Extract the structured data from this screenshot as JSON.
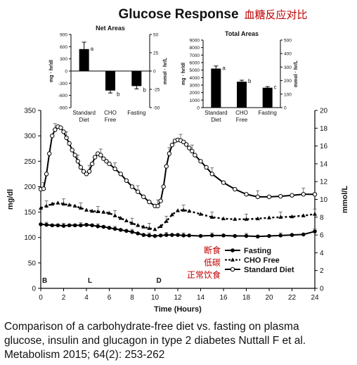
{
  "title": "Glucose Response",
  "title_cn": "血糖反应对比",
  "caption": [
    "Comparison of a carbohydrate-free diet vs. fasting on plasma",
    "glucose, insulin and glucagon in type 2 diabetes Nuttall F et al.",
    "Metabolism 2015; 64(2): 253-262"
  ],
  "chart_data": [
    {
      "type": "bar",
      "title": "Net Areas",
      "categories": [
        "Standard Diet",
        "CHO Free",
        "Fasting"
      ],
      "category_lines": [
        [
          "Standard",
          "Diet"
        ],
        [
          "CHO",
          "Free"
        ],
        [
          "Fasting"
        ]
      ],
      "values": [
        540,
        -480,
        -370
      ],
      "errors": [
        170,
        60,
        70
      ],
      "letters": [
        "a",
        "b",
        "b"
      ],
      "ylabel": "mg · hr/dl",
      "ylabel_right": "mmol · hr/L",
      "ylim": [
        -900,
        900
      ],
      "yticks": [
        "900",
        "600",
        "300",
        "0",
        "-300",
        "-600",
        "-900"
      ],
      "ylim_right": [
        -50,
        50
      ],
      "yticks_right": [
        "50",
        "25",
        "0",
        "-25",
        "-50"
      ],
      "color": "#000000"
    },
    {
      "type": "bar",
      "title": "Total Areas",
      "categories": [
        "Standard Diet",
        "CHO Free",
        "Fasting"
      ],
      "category_lines": [
        [
          "Standard",
          "Diet"
        ],
        [
          "CHO",
          "Free"
        ],
        [
          "Fasting"
        ]
      ],
      "values": [
        5200,
        3450,
        2650
      ],
      "errors": [
        350,
        200,
        150
      ],
      "letters": [
        "a",
        "b",
        "c"
      ],
      "ylabel": "mg · hr/dl",
      "ylabel_right": "mmol · hr/L",
      "ylim": [
        0,
        9000
      ],
      "yticks": [
        "0",
        "1000",
        "2000",
        "3000",
        "4000",
        "5000",
        "6000",
        "7000",
        "8000",
        "9000"
      ],
      "ylim_right": [
        0,
        500
      ],
      "yticks_right": [
        "0",
        "100",
        "200",
        "300",
        "400",
        "500"
      ],
      "color": "#000000"
    },
    {
      "type": "line",
      "xlabel": "Time (Hours)",
      "ylabel": "mg/dl",
      "ylabel_right": "mmol/L",
      "xlim": [
        0,
        24
      ],
      "ylim": [
        0,
        350
      ],
      "ylim_right": [
        0,
        20
      ],
      "xticks": [
        "0",
        "2",
        "4",
        "6",
        "8",
        "10",
        "12",
        "14",
        "16",
        "18",
        "20",
        "22",
        "24"
      ],
      "yticks": [
        "0",
        "50",
        "100",
        "150",
        "200",
        "250",
        "300",
        "350"
      ],
      "yticks_right": [
        "0",
        "2",
        "4",
        "6",
        "8",
        "10",
        "12",
        "14",
        "16",
        "18",
        "20"
      ],
      "meal_markers": [
        {
          "label": "B",
          "x": 0
        },
        {
          "label": "L",
          "x": 4
        },
        {
          "label": "D",
          "x": 10
        }
      ],
      "series": [
        {
          "name": "Fasting",
          "marker": "filled-circle",
          "dash": "solid",
          "x": [
            0,
            0.5,
            1,
            1.5,
            2,
            2.5,
            3,
            3.5,
            4,
            4.5,
            5,
            5.5,
            6,
            6.5,
            7,
            7.5,
            8,
            8.5,
            9,
            9.5,
            10,
            10.5,
            11,
            11.5,
            12,
            12.5,
            13,
            14,
            15,
            16,
            17,
            18,
            19,
            20,
            21,
            22,
            23,
            24
          ],
          "y": [
            126,
            125,
            124,
            124,
            123,
            124,
            124,
            124,
            125,
            124,
            122,
            121,
            119,
            117,
            115,
            113,
            111,
            108,
            105,
            104,
            103,
            104,
            105,
            105,
            105,
            104,
            104,
            103,
            104,
            104,
            103,
            103,
            102,
            103,
            104,
            105,
            106,
            112
          ]
        },
        {
          "name": "CHO Free",
          "marker": "filled-triangle",
          "dash": "dotted",
          "x": [
            0,
            0.5,
            1,
            1.5,
            2,
            2.5,
            3,
            3.5,
            4,
            4.5,
            5,
            5.5,
            6,
            6.5,
            7,
            7.5,
            8,
            8.5,
            9,
            9.5,
            10,
            10.5,
            11,
            11.5,
            12,
            12.5,
            13,
            14,
            15,
            16,
            17,
            18,
            19,
            20,
            21,
            22,
            23,
            24
          ],
          "y": [
            158,
            162,
            166,
            168,
            166,
            164,
            162,
            158,
            154,
            152,
            151,
            150,
            148,
            143,
            138,
            133,
            128,
            124,
            121,
            118,
            116,
            122,
            132,
            145,
            153,
            154,
            152,
            146,
            140,
            137,
            136,
            136,
            137,
            139,
            140,
            141,
            143,
            146
          ]
        },
        {
          "name": "Standard Diet",
          "marker": "open-circle",
          "dash": "solid",
          "x": [
            0,
            0.25,
            0.5,
            0.75,
            1,
            1.25,
            1.5,
            1.75,
            2,
            2.25,
            2.5,
            2.75,
            3,
            3.25,
            3.5,
            3.75,
            4,
            4.25,
            4.5,
            4.75,
            5,
            5.25,
            5.5,
            5.75,
            6,
            6.5,
            7,
            7.5,
            8,
            8.5,
            9,
            9.5,
            10,
            10.25,
            10.5,
            10.75,
            11,
            11.25,
            11.5,
            11.75,
            12,
            12.25,
            12.5,
            12.75,
            13,
            13.25,
            13.5,
            14,
            14.5,
            15,
            16,
            17,
            18,
            19,
            20,
            21,
            22,
            23,
            24
          ],
          "y": [
            195,
            196,
            225,
            265,
            300,
            312,
            318,
            316,
            308,
            296,
            285,
            272,
            262,
            250,
            238,
            230,
            225,
            230,
            245,
            258,
            265,
            262,
            255,
            250,
            245,
            235,
            225,
            212,
            200,
            190,
            180,
            170,
            162,
            162,
            172,
            200,
            240,
            265,
            282,
            290,
            292,
            291,
            288,
            283,
            276,
            270,
            262,
            250,
            238,
            225,
            208,
            195,
            185,
            180,
            180,
            181,
            183,
            185,
            185
          ]
        }
      ],
      "legend": {
        "position": "lower-right",
        "labels_cn": [
          "断食",
          "低碳",
          "正常饮食"
        ]
      }
    }
  ]
}
